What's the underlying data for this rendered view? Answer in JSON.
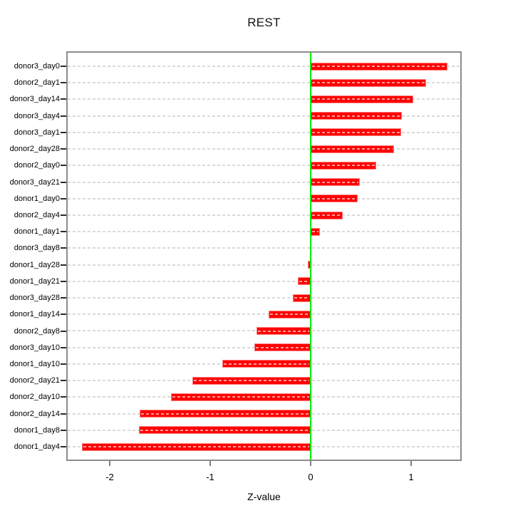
{
  "chart_data": {
    "type": "bar",
    "orientation": "horizontal",
    "title": "REST",
    "xlabel": "Z-value",
    "ylabel": "",
    "categories": [
      "donor3_day0",
      "donor2_day1",
      "donor3_day14",
      "donor3_day4",
      "donor3_day1",
      "donor2_day28",
      "donor2_day0",
      "donor3_day21",
      "donor1_day0",
      "donor2_day4",
      "donor1_day1",
      "donor3_day8",
      "donor1_day28",
      "donor1_day21",
      "donor3_day28",
      "donor1_day14",
      "donor2_day8",
      "donor3_day10",
      "donor1_day10",
      "donor2_day21",
      "donor2_day10",
      "donor2_day14",
      "donor1_day8",
      "donor1_day4"
    ],
    "values": [
      1.36,
      1.15,
      1.02,
      0.91,
      0.9,
      0.83,
      0.65,
      0.49,
      0.47,
      0.32,
      0.09,
      0.0,
      -0.03,
      -0.13,
      -0.18,
      -0.42,
      -0.54,
      -0.56,
      -0.88,
      -1.18,
      -1.39,
      -1.7,
      -1.71,
      -2.28
    ],
    "xlim": [
      -2.433,
      1.504
    ],
    "xticks": [
      "-2",
      "-1",
      "0",
      "1"
    ],
    "xtick_values": [
      -2,
      -1,
      0,
      1
    ],
    "grid": "horizontal-dashed",
    "legend": "none",
    "zero_reference_line": 0,
    "colors": {
      "bar": "#fe0000",
      "bar_border": "#ff8080",
      "bar_dash": "#ff9d9d",
      "gridline": "#d9d9d9",
      "zero_line": "#00ef00",
      "frame": "#8c8c8c",
      "axis": "#161616",
      "text": "#000000",
      "background": "#ffffff"
    }
  }
}
